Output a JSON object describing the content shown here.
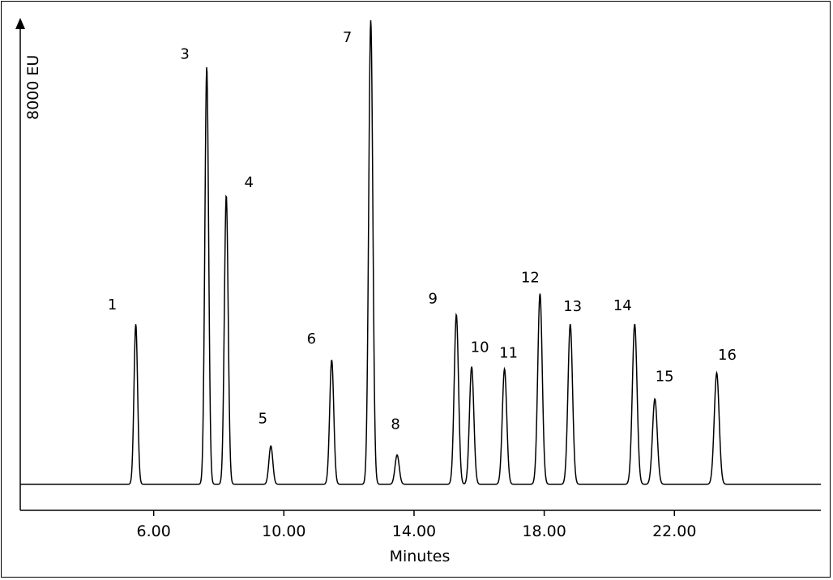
{
  "chart_data": {
    "type": "line",
    "title": "",
    "xlabel": "Minutes",
    "ylabel": "8000 EU",
    "xlim": [
      1.9,
      26.5
    ],
    "ylim": [
      -460,
      8300
    ],
    "x_ticks": [
      "6.00",
      "10.00",
      "14.00",
      "18.00",
      "22.00"
    ],
    "grid": false,
    "series": [
      {
        "peaks": [
          {
            "label": "1",
            "time": 5.45,
            "height": 2830
          },
          {
            "label": "3",
            "time": 7.63,
            "height": 7380
          },
          {
            "label": "4",
            "time": 8.23,
            "height": 5110
          },
          {
            "label": "5",
            "time": 9.6,
            "height": 680
          },
          {
            "label": "6",
            "time": 11.47,
            "height": 2200
          },
          {
            "label": "7",
            "time": 12.67,
            "height": 8200
          },
          {
            "label": "8",
            "time": 13.48,
            "height": 520
          },
          {
            "label": "9",
            "time": 15.3,
            "height": 3000
          },
          {
            "label": "10",
            "time": 15.77,
            "height": 2080
          },
          {
            "label": "11",
            "time": 16.78,
            "height": 2040
          },
          {
            "label": "12",
            "time": 17.87,
            "height": 3370
          },
          {
            "label": "13",
            "time": 18.8,
            "height": 2830
          },
          {
            "label": "14",
            "time": 20.78,
            "height": 2830
          },
          {
            "label": "15",
            "time": 21.4,
            "height": 1510
          },
          {
            "label": "16",
            "time": 23.3,
            "height": 1970
          }
        ]
      }
    ]
  }
}
